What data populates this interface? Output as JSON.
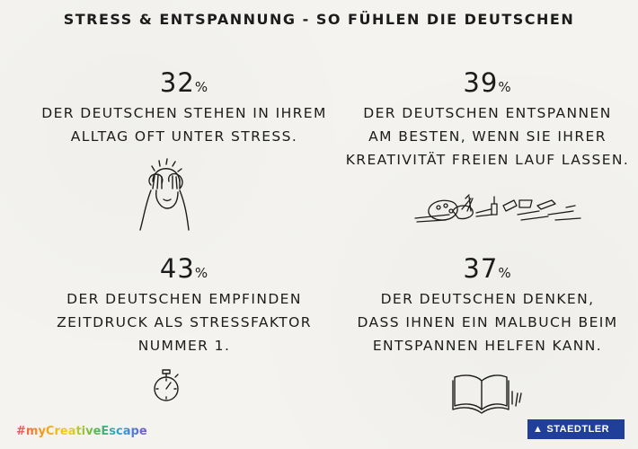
{
  "title": "STRESS & ENTSPANNUNG - SO FÜHLEN DIE DEUTSCHEN",
  "stats": [
    {
      "value": "32",
      "unit": "%",
      "lines": [
        "DER DEUTSCHEN STEHEN IN IHREM",
        "ALLTAG OFT UNTER STRESS."
      ],
      "icon": "stressed-person-icon"
    },
    {
      "value": "39",
      "unit": "%",
      "lines": [
        "DER DEUTSCHEN ENTSPANNEN",
        "AM BESTEN, WENN SIE IHRER",
        "KREATIVITÄT FREIEN LAUF LASSEN."
      ],
      "icon": "art-supplies-icon"
    },
    {
      "value": "43",
      "unit": "%",
      "lines": [
        "DER DEUTSCHEN EMPFINDEN",
        "ZEITDRUCK ALS STRESSFAKTOR",
        "NUMMER 1."
      ],
      "icon": "stopwatch-icon"
    },
    {
      "value": "37",
      "unit": "%",
      "lines": [
        "DER DEUTSCHEN DENKEN,",
        "DASS IHNEN EIN MALBUCH BEIM",
        "ENTSPANNEN HELFEN KANN."
      ],
      "icon": "open-book-icon"
    }
  ],
  "footer": {
    "hashtag": "#myCreativeEscape",
    "logo": "STAEDTLER",
    "hashtag_gradient": [
      "#e94b6b",
      "#f29b1f",
      "#f1d21d",
      "#59b74f",
      "#2f9fd6",
      "#7a54c7"
    ],
    "logo_color": "#1f3f9a"
  }
}
